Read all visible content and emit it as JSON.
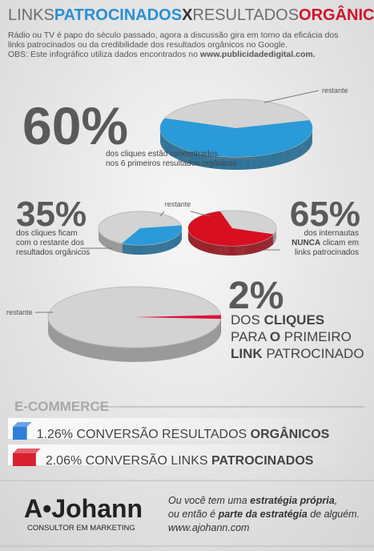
{
  "title": [
    {
      "t": "LINKS",
      "c": "#6d6d6d",
      "b": false
    },
    {
      "t": "PATROCINADOS",
      "c": "#2a8fd6",
      "b": true
    },
    {
      "t": "X",
      "c": "#333333",
      "b": true
    },
    {
      "t": "RESULTADOS",
      "c": "#6d6d6d",
      "b": false
    },
    {
      "t": "ORGÂNICOS",
      "c": "#d0122b",
      "b": true
    }
  ],
  "intro": [
    "Rádio ou TV é papo do século passado, agora a discussão gira em torno da eficácia dos",
    "links patrocinados ou da credibilidade dos resultados orgânicos no Google.",
    "OBS: Este infográfico utiliza dados encontrados no"
  ],
  "source": "www.publicidadedigital.com.",
  "rest_label": "restante",
  "stats": [
    {
      "value": 60,
      "label": "60%",
      "color": "#2a9ad8",
      "caption": [
        [
          {
            "t": "dos cliques estão concentrados",
            "b": false
          }
        ],
        [
          {
            "t": "nos 6 primeiros resultados orgânicos",
            "b": false
          }
        ]
      ]
    },
    {
      "value": 35,
      "label": "35%",
      "color": "#2a9ad8",
      "caption": [
        [
          {
            "t": "dos cliques ficam",
            "b": false
          }
        ],
        [
          {
            "t": "com o restante dos",
            "b": false
          }
        ],
        [
          {
            "t": "resultados orgânicos",
            "b": false
          }
        ]
      ]
    },
    {
      "value": 65,
      "label": "65%",
      "color": "#d80f1e",
      "caption": [
        [
          {
            "t": "dos internautas",
            "b": false
          }
        ],
        [
          {
            "t": "NUNCA",
            "b": true
          },
          {
            "t": " clicam em",
            "b": false
          }
        ],
        [
          {
            "t": "links patrocinados",
            "b": false
          }
        ]
      ]
    },
    {
      "value": 2,
      "label": "2%",
      "color": "#e0103a",
      "caption": [
        [
          {
            "t": "DOS ",
            "b": false
          },
          {
            "t": "CLIQUES",
            "b": true
          }
        ],
        [
          {
            "t": "PARA ",
            "b": false
          },
          {
            "t": "O",
            "b": true
          },
          {
            "t": " PRIMEIRO",
            "b": false
          }
        ],
        [
          {
            "t": "LINK",
            "b": true
          },
          {
            "t": " PATROCINADO",
            "b": false
          }
        ]
      ]
    }
  ],
  "ecommerce": {
    "title": "E-COMMERCE",
    "rows": [
      {
        "value": 1.26,
        "label": "1.26%",
        "text": " CONVERSÃO RESULTADOS ",
        "bold": "ORGÂNICOS",
        "color": "#2f7fd8"
      },
      {
        "value": 2.06,
        "label": "2.06%",
        "text": " CONVERSÃO LINKS ",
        "bold": "PATROCINADOS",
        "color": "#d8202e"
      }
    ]
  },
  "footer": {
    "logo": "A•Johann",
    "tagline": "CONSULTOR EM MARKETING",
    "lines": [
      [
        {
          "t": "Ou você tem uma ",
          "b": false
        },
        {
          "t": "estratégia própria",
          "b": true
        },
        {
          "t": ",",
          "b": false
        }
      ],
      [
        {
          "t": "ou então é ",
          "b": false
        },
        {
          "t": "parte da estratégia",
          "b": true
        },
        {
          "t": " de alguém.",
          "b": false
        }
      ],
      [
        {
          "t": "www.ajohann.com",
          "b": false
        }
      ]
    ]
  }
}
